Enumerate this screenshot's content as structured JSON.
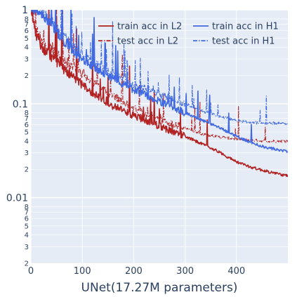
{
  "chart_data": {
    "type": "line",
    "title": "",
    "xlabel": "UNet(17.27M parameters)",
    "ylabel": "",
    "xlim": [
      0,
      500
    ],
    "ylim": [
      0.002,
      1
    ],
    "yscale": "log",
    "grid": true,
    "legend_position": "top-right",
    "plot_background": "#e5ecf6",
    "x_ticks": [
      {
        "value": 0,
        "label": "0"
      },
      {
        "value": 100,
        "label": "100"
      },
      {
        "value": 200,
        "label": "200"
      },
      {
        "value": 300,
        "label": "300"
      },
      {
        "value": 400,
        "label": "400"
      }
    ],
    "y_major_ticks": [
      {
        "value": 1,
        "label": "1"
      },
      {
        "value": 0.1,
        "label": "0.1"
      },
      {
        "value": 0.01,
        "label": "0.01"
      }
    ],
    "y_minor_ticks": [
      {
        "value": 0.8,
        "label": "8"
      },
      {
        "value": 0.7,
        "label": "7"
      },
      {
        "value": 0.6,
        "label": "6"
      },
      {
        "value": 0.5,
        "label": "5"
      },
      {
        "value": 0.4,
        "label": "4"
      },
      {
        "value": 0.3,
        "label": "3"
      },
      {
        "value": 0.2,
        "label": "2"
      },
      {
        "value": 0.08,
        "label": "8"
      },
      {
        "value": 0.07,
        "label": "7"
      },
      {
        "value": 0.06,
        "label": "6"
      },
      {
        "value": 0.05,
        "label": "5"
      },
      {
        "value": 0.04,
        "label": "4"
      },
      {
        "value": 0.03,
        "label": "3"
      },
      {
        "value": 0.02,
        "label": "2"
      },
      {
        "value": 0.008,
        "label": "8"
      },
      {
        "value": 0.007,
        "label": "7"
      },
      {
        "value": 0.006,
        "label": "6"
      },
      {
        "value": 0.005,
        "label": "5"
      },
      {
        "value": 0.004,
        "label": "4"
      },
      {
        "value": 0.003,
        "label": "3"
      },
      {
        "value": 0.002,
        "label": "2"
      }
    ],
    "series": [
      {
        "name": "train acc in L2",
        "color": "#b22222",
        "dash": "solid",
        "x": [
          0,
          5,
          10,
          20,
          30,
          40,
          50,
          60,
          80,
          100,
          120,
          150,
          180,
          200,
          230,
          260,
          300,
          330,
          360,
          400,
          430,
          460,
          500
        ],
        "y": [
          1.0,
          0.75,
          0.55,
          0.42,
          0.36,
          0.32,
          0.28,
          0.25,
          0.2,
          0.16,
          0.13,
          0.1,
          0.085,
          0.075,
          0.065,
          0.055,
          0.045,
          0.038,
          0.032,
          0.024,
          0.021,
          0.019,
          0.017
        ]
      },
      {
        "name": "test acc in L2",
        "color": "#b22222",
        "dash": "dashdot",
        "x": [
          0,
          5,
          10,
          20,
          30,
          40,
          50,
          60,
          80,
          100,
          120,
          150,
          180,
          200,
          230,
          260,
          300,
          330,
          360,
          400,
          430,
          460,
          500
        ],
        "y": [
          1.0,
          0.8,
          0.62,
          0.48,
          0.42,
          0.37,
          0.33,
          0.3,
          0.25,
          0.21,
          0.17,
          0.13,
          0.105,
          0.09,
          0.075,
          0.065,
          0.055,
          0.048,
          0.045,
          0.042,
          0.041,
          0.04,
          0.04
        ]
      },
      {
        "name": "train acc in H1",
        "color": "#4169e1",
        "dash": "solid",
        "x": [
          0,
          10,
          20,
          30,
          40,
          50,
          60,
          80,
          100,
          120,
          150,
          180,
          200,
          230,
          260,
          300,
          330,
          360,
          400,
          430,
          460,
          500
        ],
        "y": [
          1.0,
          1.0,
          0.9,
          0.8,
          0.7,
          0.6,
          0.5,
          0.38,
          0.3,
          0.25,
          0.2,
          0.16,
          0.14,
          0.12,
          0.1,
          0.08,
          0.068,
          0.058,
          0.045,
          0.038,
          0.034,
          0.031
        ]
      },
      {
        "name": "test acc in H1",
        "color": "#4169e1",
        "dash": "dashdot",
        "x": [
          0,
          10,
          20,
          30,
          40,
          50,
          60,
          80,
          100,
          120,
          150,
          180,
          200,
          230,
          260,
          300,
          330,
          360,
          400,
          430,
          460,
          500
        ],
        "y": [
          1.0,
          1.0,
          0.95,
          0.85,
          0.75,
          0.65,
          0.55,
          0.42,
          0.33,
          0.28,
          0.22,
          0.18,
          0.16,
          0.14,
          0.12,
          0.1,
          0.085,
          0.075,
          0.066,
          0.063,
          0.062,
          0.062
        ]
      }
    ]
  }
}
